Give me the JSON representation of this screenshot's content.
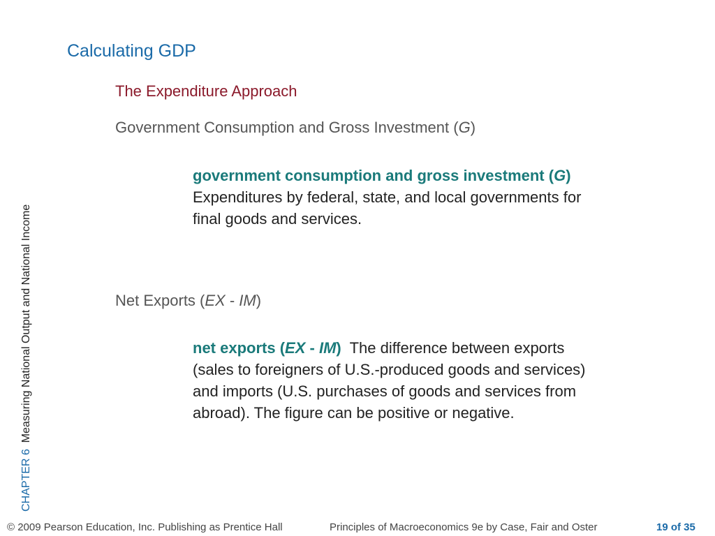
{
  "title": "Calculating GDP",
  "subtitle": "The Expenditure Approach",
  "sections": {
    "government": {
      "heading_main": "Government Consumption and Gross Investment (",
      "heading_var": "G",
      "heading_close": ")",
      "term_main": "government consumption and gross investment (",
      "term_var": "G",
      "term_close": ")",
      "definition": "Expenditures by federal, state, and local governments for final goods and services."
    },
    "net_exports": {
      "heading_main": "Net Exports (",
      "heading_var1": "EX",
      "heading_sep": " - ",
      "heading_var2": "IM",
      "heading_close": ")",
      "term_main": "net exports (",
      "term_var1": "EX",
      "term_sep": " - ",
      "term_var2": "IM",
      "term_close": ")",
      "definition": "The difference between exports (sales to foreigners of U.S.-produced goods and services) and imports (U.S. purchases of goods and services from abroad). The figure can be positive or negative."
    }
  },
  "sidebar": {
    "chapter": "CHAPTER 6",
    "chapter_title": "Measuring National Output and National Income"
  },
  "footer": {
    "copyright": "© 2009 Pearson Education, Inc. Publishing as Prentice Hall",
    "book": "Principles of Macroeconomics 9e by Case, Fair and Oster",
    "page": "19 of 35"
  }
}
